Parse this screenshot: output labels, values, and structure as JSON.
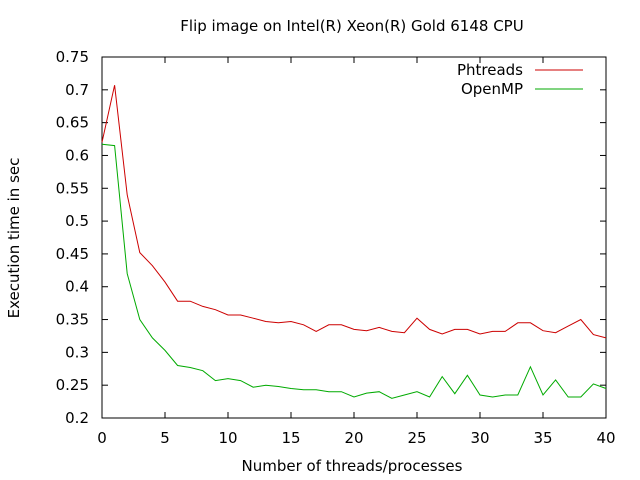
{
  "chart_data": {
    "type": "line",
    "title": "Flip image on Intel(R) Xeon(R) Gold 6148 CPU",
    "xlabel": "Number of threads/processes",
    "ylabel": "Execution time in sec",
    "xlim": [
      0,
      40
    ],
    "ylim": [
      0.2,
      0.75
    ],
    "xticks": [
      0,
      5,
      10,
      15,
      20,
      25,
      30,
      35,
      40
    ],
    "yticks": [
      0.2,
      0.25,
      0.3,
      0.35,
      0.4,
      0.45,
      0.5,
      0.55,
      0.6,
      0.65,
      0.7,
      0.75
    ],
    "ytick_labels": [
      "0.2",
      "0.25",
      "0.3",
      "0.35",
      "0.4",
      "0.45",
      "0.5",
      "0.55",
      "0.6",
      "0.65",
      "0.7",
      "0.75"
    ],
    "grid": false,
    "legend_position": "top-right",
    "x": [
      0,
      1,
      2,
      3,
      4,
      5,
      6,
      7,
      8,
      9,
      10,
      11,
      12,
      13,
      14,
      15,
      16,
      17,
      18,
      19,
      20,
      21,
      22,
      23,
      24,
      25,
      26,
      27,
      28,
      29,
      30,
      31,
      32,
      33,
      34,
      35,
      36,
      37,
      38,
      39,
      40
    ],
    "series": [
      {
        "name": "Phtreads",
        "color": "#cc0000",
        "values": [
          0.62,
          0.707,
          0.54,
          0.452,
          0.432,
          0.407,
          0.378,
          0.378,
          0.37,
          0.365,
          0.357,
          0.357,
          0.352,
          0.347,
          0.345,
          0.347,
          0.342,
          0.332,
          0.342,
          0.342,
          0.335,
          0.333,
          0.338,
          0.332,
          0.33,
          0.352,
          0.335,
          0.328,
          0.335,
          0.335,
          0.328,
          0.332,
          0.332,
          0.345,
          0.345,
          0.333,
          0.33,
          0.34,
          0.35,
          0.327,
          0.322
        ]
      },
      {
        "name": "OpenMP",
        "color": "#00aa00",
        "values": [
          0.617,
          0.615,
          0.42,
          0.35,
          0.322,
          0.303,
          0.28,
          0.277,
          0.272,
          0.257,
          0.26,
          0.257,
          0.247,
          0.25,
          0.248,
          0.245,
          0.243,
          0.243,
          0.24,
          0.24,
          0.232,
          0.238,
          0.24,
          0.23,
          0.235,
          0.24,
          0.232,
          0.263,
          0.237,
          0.265,
          0.235,
          0.232,
          0.235,
          0.235,
          0.278,
          0.235,
          0.258,
          0.232,
          0.232,
          0.252,
          0.245
        ]
      }
    ]
  }
}
